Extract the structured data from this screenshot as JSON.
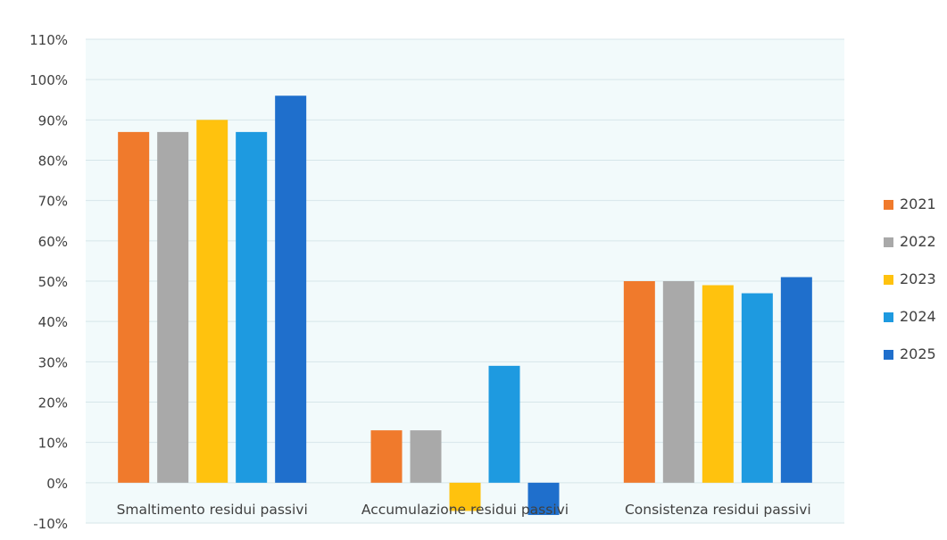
{
  "chart_data": {
    "type": "bar",
    "title": "",
    "xlabel": "",
    "ylabel": "",
    "categories": [
      "Smaltimento residui passivi",
      "Accumulazione residui passivi",
      "Consistenza residui passivi"
    ],
    "series": [
      {
        "name": "2021",
        "color": "#F07A2C",
        "values": [
          87,
          13,
          50
        ]
      },
      {
        "name": "2022",
        "color": "#A9A9A9",
        "values": [
          87,
          13,
          50
        ]
      },
      {
        "name": "2023",
        "color": "#FFC20E",
        "values": [
          90,
          -7,
          49
        ]
      },
      {
        "name": "2024",
        "color": "#1E9AE0",
        "values": [
          87,
          29,
          47
        ]
      },
      {
        "name": "2025",
        "color": "#1F6FCC",
        "values": [
          96,
          -8,
          51
        ]
      }
    ],
    "ylim": [
      -10,
      110
    ],
    "y_ticks": [
      "-10%",
      "0%",
      "10%",
      "20%",
      "30%",
      "40%",
      "50%",
      "60%",
      "70%",
      "80%",
      "90%",
      "100%",
      "110%"
    ],
    "grid": true,
    "legend_position": "right",
    "plot_background": "#F2FAFB",
    "gridline_color": "#D6E6EA"
  }
}
